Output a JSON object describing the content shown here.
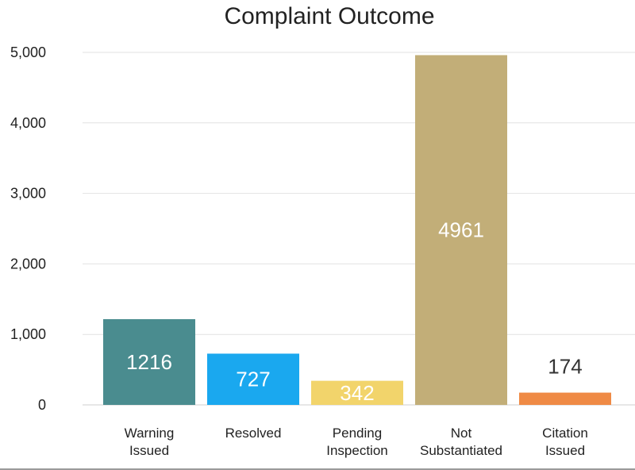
{
  "chart_data": {
    "type": "bar",
    "title": "Complaint Outcome",
    "categories": [
      [
        "Warning",
        "Issued"
      ],
      [
        "Resolved"
      ],
      [
        "Pending",
        "Inspection"
      ],
      [
        "Not",
        "Substantiated"
      ],
      [
        "Citation",
        "Issued"
      ]
    ],
    "values": [
      1216,
      727,
      342,
      4961,
      174
    ],
    "data_labels": [
      "1216",
      "727",
      "342",
      "4961",
      "174"
    ],
    "colors": [
      "#4a8c8f",
      "#1aa8ef",
      "#f2d46b",
      "#c2ae78",
      "#ef8a45"
    ],
    "label_colors": [
      "#ffffff",
      "#ffffff",
      "#ffffff",
      "#ffffff",
      "#333333"
    ],
    "label_position": [
      "inside",
      "inside",
      "inside",
      "inside",
      "above"
    ],
    "ylim": [
      0,
      5000
    ],
    "yticks": [
      0,
      1000,
      2000,
      3000,
      4000,
      5000
    ],
    "ytick_labels": [
      "0",
      "1,000",
      "2,000",
      "3,000",
      "4,000",
      "5,000"
    ],
    "grid": true,
    "legend": "none"
  }
}
